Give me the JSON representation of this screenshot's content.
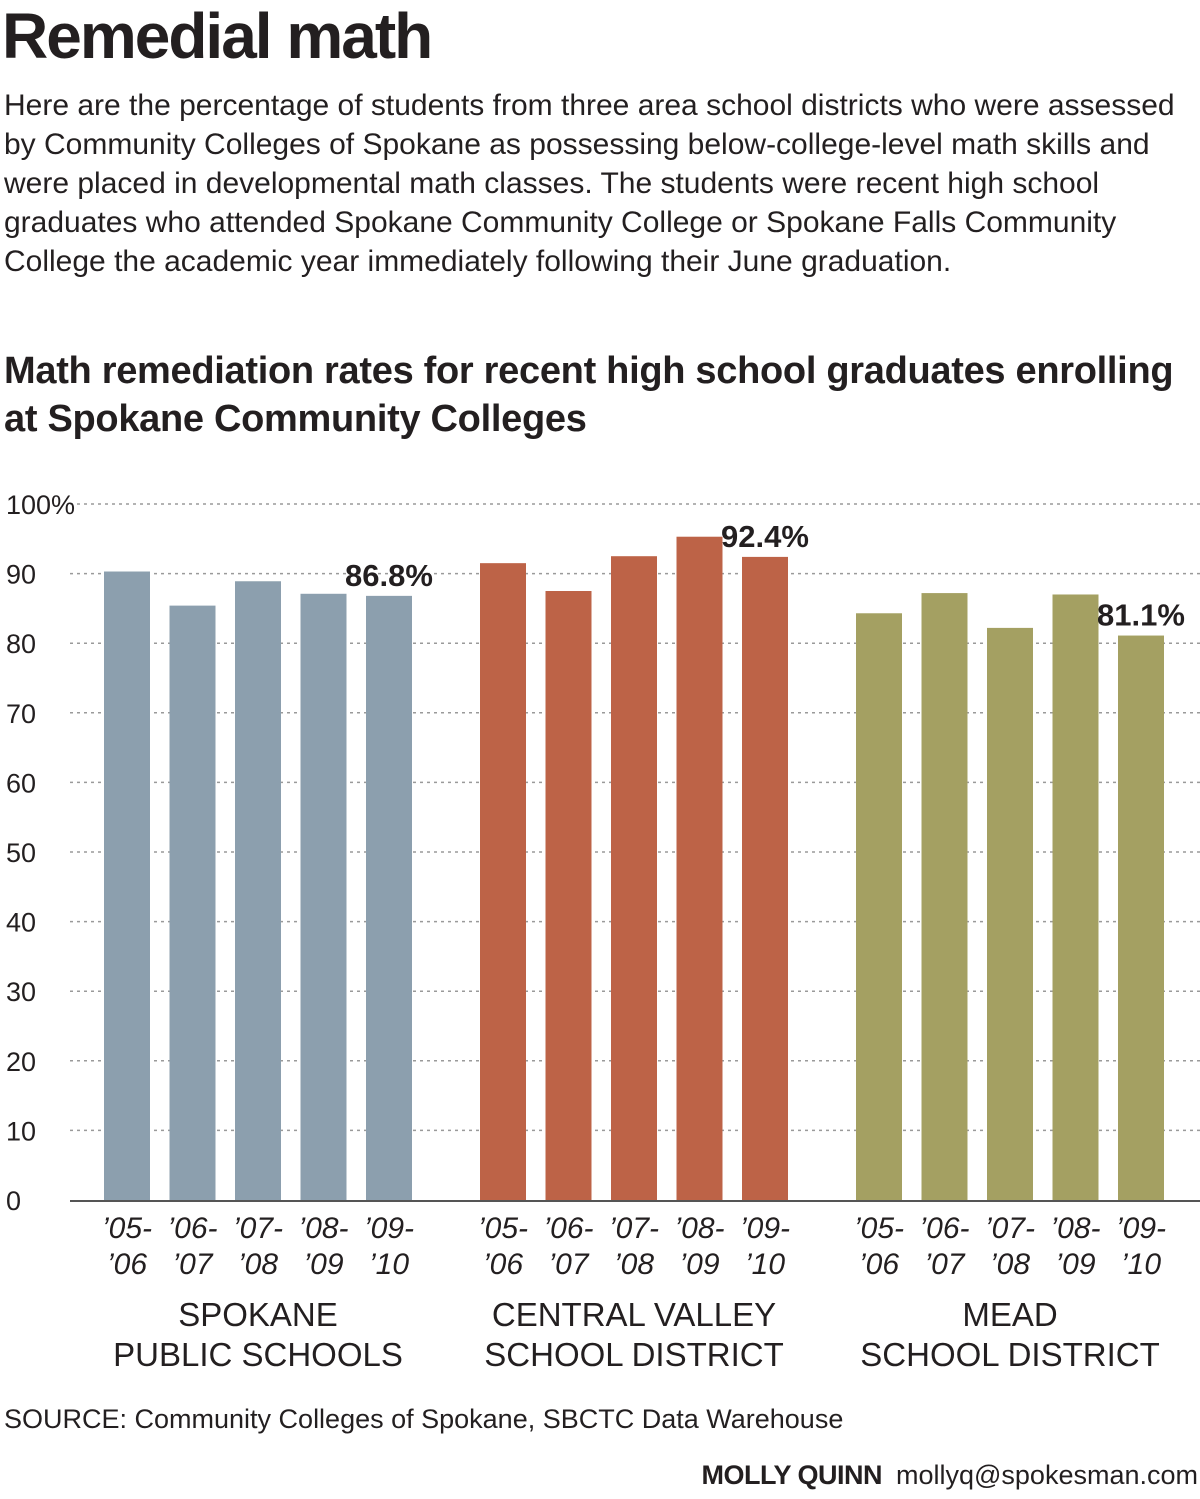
{
  "headline": "Remedial math",
  "intro": "Here are the percentage of students from three area school districts who were assessed by Community Colleges of Spokane as possessing below-college-level math skills and were placed in developmental math classes. The students were recent high school graduates who attended Spokane Community College or Spokane Falls Community College the academic year immediately following their June graduation.",
  "source": "SOURCE: Community Colleges of Spokane, SBCTC Data Warehouse",
  "credit": {
    "name": "MOLLY QUINN",
    "email": "mollyq@spokesman.com"
  },
  "colors": {
    "spokane": "#8c9fae",
    "central_valley": "#bd6347",
    "mead": "#a4a062",
    "text": "#231f20",
    "grid": "#9a9a9a"
  },
  "chart_data": {
    "type": "bar",
    "title": "Math remediation rates for recent high school graduates enrolling at Spokane Community Colleges",
    "xlabel": "",
    "ylabel": "",
    "ylim": [
      0,
      100
    ],
    "yticks": [
      "0",
      "10",
      "20",
      "30",
      "40",
      "50",
      "60",
      "70",
      "80",
      "90",
      "100%"
    ],
    "grid": "horizontal dotted",
    "categories": [
      [
        "’05-",
        "’06"
      ],
      [
        "’06-",
        "’07"
      ],
      [
        "’07-",
        "’08"
      ],
      [
        "’08-",
        "’09"
      ],
      [
        "’09-",
        "’10"
      ]
    ],
    "groups": [
      {
        "label": [
          "SPOKANE",
          "PUBLIC SCHOOLS"
        ],
        "color": "#8c9fae",
        "values": [
          90.3,
          85.4,
          88.9,
          87.1,
          86.8
        ],
        "last_label": "86.8%"
      },
      {
        "label": [
          "CENTRAL VALLEY",
          "SCHOOL DISTRICT"
        ],
        "color": "#bd6347",
        "values": [
          91.5,
          87.5,
          92.5,
          95.3,
          92.4
        ],
        "last_label": "92.4%"
      },
      {
        "label": [
          "MEAD",
          "SCHOOL DISTRICT"
        ],
        "color": "#a4a062",
        "values": [
          84.3,
          87.2,
          82.2,
          87.0,
          81.1
        ],
        "last_label": "81.1%"
      }
    ]
  }
}
